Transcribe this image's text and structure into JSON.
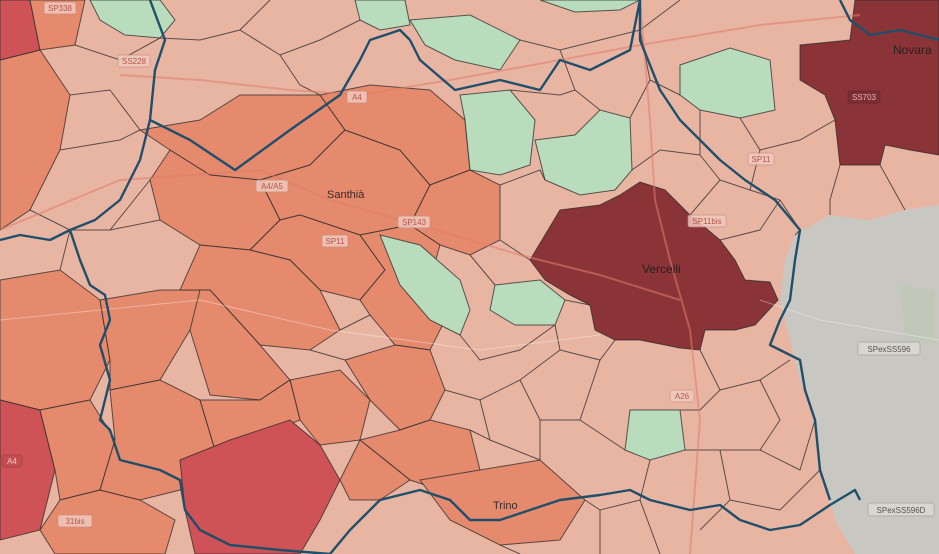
{
  "colors": {
    "dark": "#8b3438",
    "high": "#cf5356",
    "mid": "#e58a6d",
    "low": "#e9b5a3",
    "green": "#b9dcbc",
    "unshaded": "#c9c7c2",
    "boundary": "#1f4f6a"
  },
  "places": {
    "novara": "Novara",
    "vercelli": "Vercelli",
    "santhia": "Santhià",
    "trino": "Trino"
  },
  "roads": {
    "sp338": "SP338",
    "ss228": "SS228",
    "a4": "A4",
    "a4a5": "A4/A5",
    "sp11": "SP11",
    "sp143": "SP143",
    "ss703": "SS703",
    "sp11b": "SP11",
    "sp11bis": "SP11bis",
    "a26": "A26",
    "spex596": "SPexSS596",
    "spex596d": "SPexSS596D",
    "a4b": "A4",
    "s31bis": "31bis"
  }
}
